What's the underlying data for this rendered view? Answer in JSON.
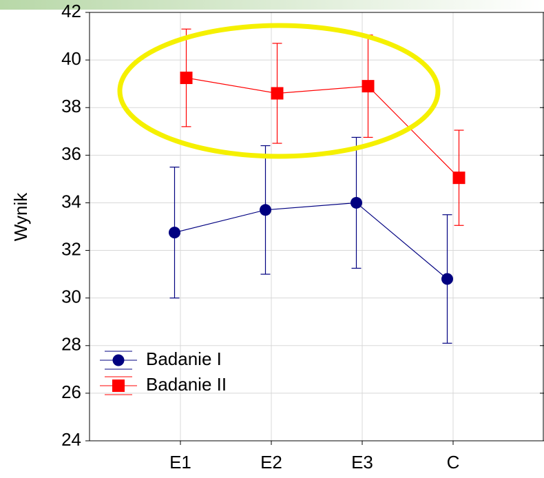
{
  "chart_data": {
    "type": "line",
    "y_label": "Wynik",
    "categories": [
      "E1",
      "E2",
      "E3",
      "C"
    ],
    "series": [
      {
        "name": "Badanie I",
        "color": "#000080",
        "marker": "circle",
        "values": [
          32.75,
          33.7,
          34.0,
          30.8
        ],
        "errors": [
          2.75,
          2.7,
          2.75,
          2.7
        ]
      },
      {
        "name": "Badanie II",
        "color": "#ff0000",
        "marker": "square",
        "values": [
          39.25,
          38.6,
          38.9,
          35.05
        ],
        "errors": [
          2.05,
          2.1,
          2.15,
          2.0
        ]
      }
    ],
    "ylim": [
      24,
      42
    ],
    "yticks": [
      24,
      26,
      28,
      30,
      32,
      34,
      36,
      38,
      40,
      42
    ],
    "grid": true,
    "legend": "lower left"
  }
}
